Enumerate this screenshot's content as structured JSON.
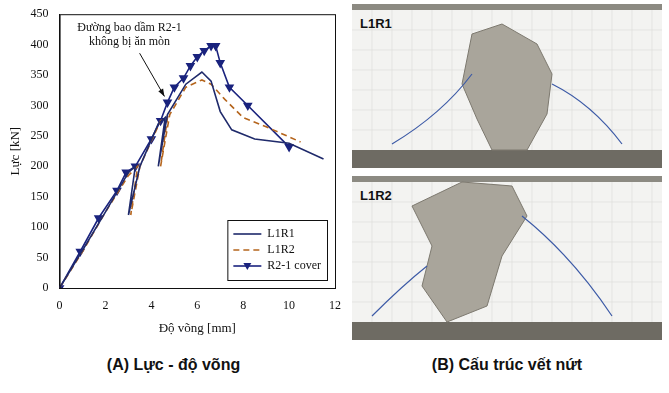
{
  "chart_data": {
    "type": "line",
    "x_label": "Độ võng [mm]",
    "y_label": "Lực [kN]",
    "xlim": [
      0,
      12
    ],
    "xticks": [
      0,
      2,
      4,
      6,
      8,
      10,
      12
    ],
    "ylim": [
      0,
      450
    ],
    "yticks": [
      0,
      50,
      100,
      150,
      200,
      250,
      300,
      350,
      400,
      450
    ],
    "grid": false,
    "legend": "lower right",
    "annotation": "Đường bao dầm R2-1 không bị ăn mòn",
    "series": [
      {
        "name": "L1R1",
        "color": "#1f2a6b",
        "line_style": "solid",
        "marker": "none",
        "x": [
          0,
          1,
          2,
          3,
          3.3,
          3.0,
          3.5,
          4.3,
          4.6,
          4.3,
          4.7,
          5.5,
          6.2,
          6.6,
          7.0,
          7.5,
          8.5,
          10,
          11.5
        ],
        "values": [
          0,
          62,
          125,
          190,
          200,
          120,
          200,
          270,
          280,
          200,
          285,
          335,
          355,
          340,
          290,
          260,
          245,
          238,
          212
        ]
      },
      {
        "name": "L1R2",
        "color": "#b5651d",
        "line_style": "dashed",
        "marker": "none",
        "x": [
          0,
          1,
          2,
          3,
          3.4,
          3.1,
          3.5,
          4.4,
          4.7,
          4.4,
          4.8,
          5.5,
          6.2,
          6.6,
          7.2,
          8,
          9,
          10.5
        ],
        "values": [
          0,
          60,
          125,
          185,
          200,
          120,
          200,
          275,
          280,
          200,
          285,
          330,
          342,
          335,
          310,
          280,
          265,
          240
        ]
      },
      {
        "name": "R2-1 cover",
        "color": "#1a237e",
        "line_style": "solid",
        "marker": "triangle-down",
        "x": [
          0,
          0.9,
          1.7,
          2.5,
          2.9,
          3.3,
          4.0,
          4.4,
          4.7,
          5.0,
          5.4,
          5.7,
          6.0,
          6.3,
          6.6,
          6.8,
          7.0,
          7.4,
          8.2,
          10.0
        ],
        "values": [
          0,
          60,
          115,
          160,
          190,
          200,
          245,
          275,
          305,
          330,
          345,
          365,
          380,
          390,
          398,
          398,
          370,
          330,
          300,
          232
        ]
      }
    ]
  },
  "photos": [
    "L1R1",
    "L1R2"
  ],
  "captions": [
    "(A) Lực - độ võng",
    "(B) Cấu trúc vết nứt"
  ]
}
